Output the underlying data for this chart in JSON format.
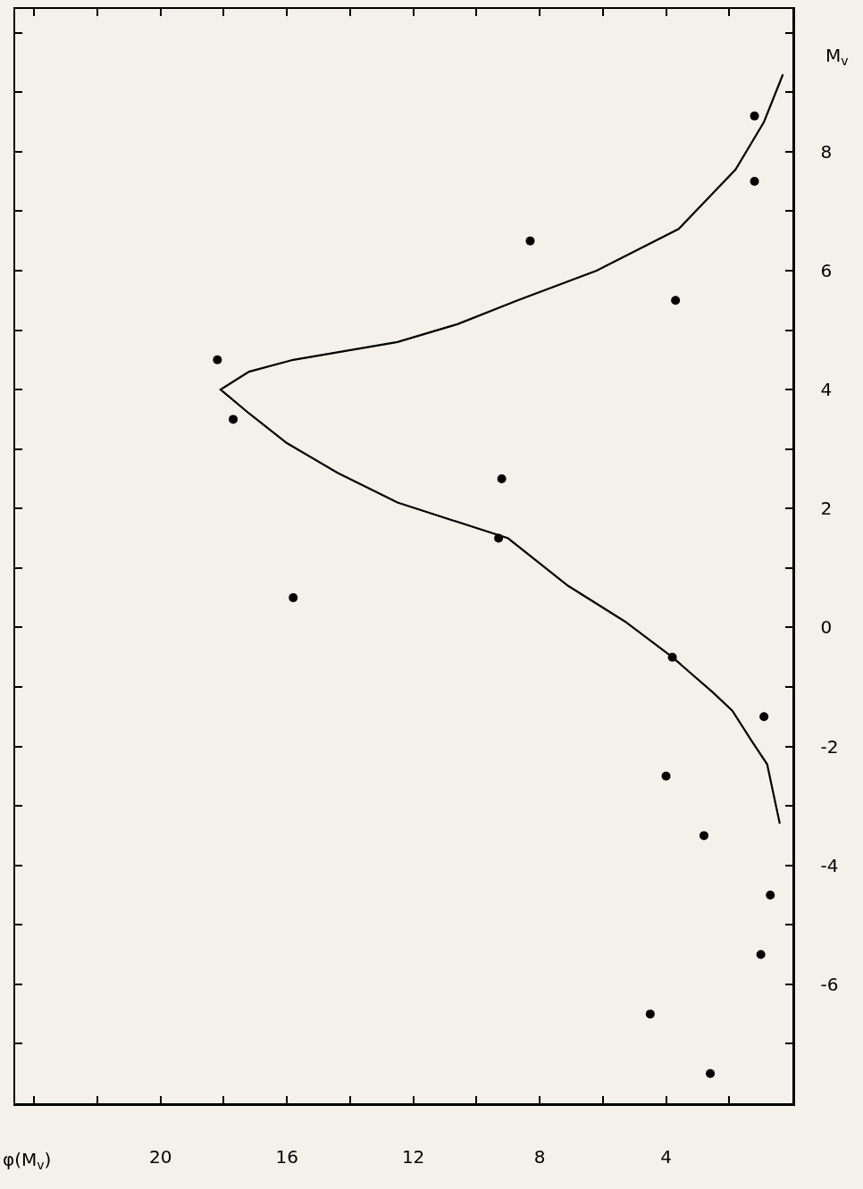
{
  "chart_data": {
    "type": "scatter",
    "xlabel": "φ(M$_{v}$)",
    "ylabel": "M$_{v}$",
    "xlim": [
      24.6,
      0
    ],
    "ylim": [
      -8,
      10.4
    ],
    "xticks": [
      {
        "value": 24,
        "label": null
      },
      {
        "value": 22,
        "label": null
      },
      20,
      {
        "value": 18,
        "label": null
      },
      16,
      {
        "value": 14,
        "label": null
      },
      12,
      {
        "value": 10,
        "label": null
      },
      8,
      {
        "value": 6,
        "label": null
      },
      4,
      {
        "value": 2,
        "label": null
      }
    ],
    "yticks": [
      {
        "value": -7,
        "label": null
      },
      -6,
      {
        "value": -5,
        "label": null
      },
      -4,
      {
        "value": -3,
        "label": null
      },
      -2,
      {
        "value": -1,
        "label": null
      },
      0,
      {
        "value": 1,
        "label": null
      },
      2,
      {
        "value": 3,
        "label": null
      },
      4,
      {
        "value": 5,
        "label": null
      },
      6,
      {
        "value": 7,
        "label": null
      },
      8,
      {
        "value": 9,
        "label": null
      },
      {
        "value": 10,
        "label": null
      }
    ],
    "series": [
      {
        "color": "#000000",
        "marker": "circle",
        "x": [
          2.6,
          4.5,
          1.0,
          0.7,
          2.8,
          4.0,
          0.9,
          3.8,
          15.8,
          9.3,
          9.2,
          17.7,
          18.2,
          3.7,
          8.3,
          1.2,
          1.2
        ],
        "values": [
          -7.5,
          -6.5,
          -5.5,
          -4.5,
          -3.5,
          -2.5,
          -1.5,
          -0.5,
          0.5,
          1.5,
          2.5,
          3.5,
          4.5,
          5.5,
          6.5,
          7.5,
          8.6
        ]
      },
      {
        "type": "line",
        "color": "#000000",
        "x": [
          0.4,
          0.8,
          1.3,
          1.9,
          2.5,
          3.8,
          5.3,
          7.1,
          9.0,
          12.5,
          14.4,
          16.0,
          17.2,
          18.1,
          17.2,
          15.8,
          12.5,
          10.6,
          8.7,
          6.2,
          3.6,
          1.8,
          0.9,
          0.3
        ],
        "values": [
          -3.3,
          -2.3,
          -1.9,
          -1.4,
          -1.1,
          -0.5,
          0.1,
          0.7,
          1.5,
          2.1,
          2.6,
          3.1,
          3.6,
          4.0,
          4.3,
          4.5,
          4.8,
          5.1,
          5.5,
          6.0,
          6.7,
          7.7,
          8.5,
          9.3
        ]
      }
    ]
  }
}
